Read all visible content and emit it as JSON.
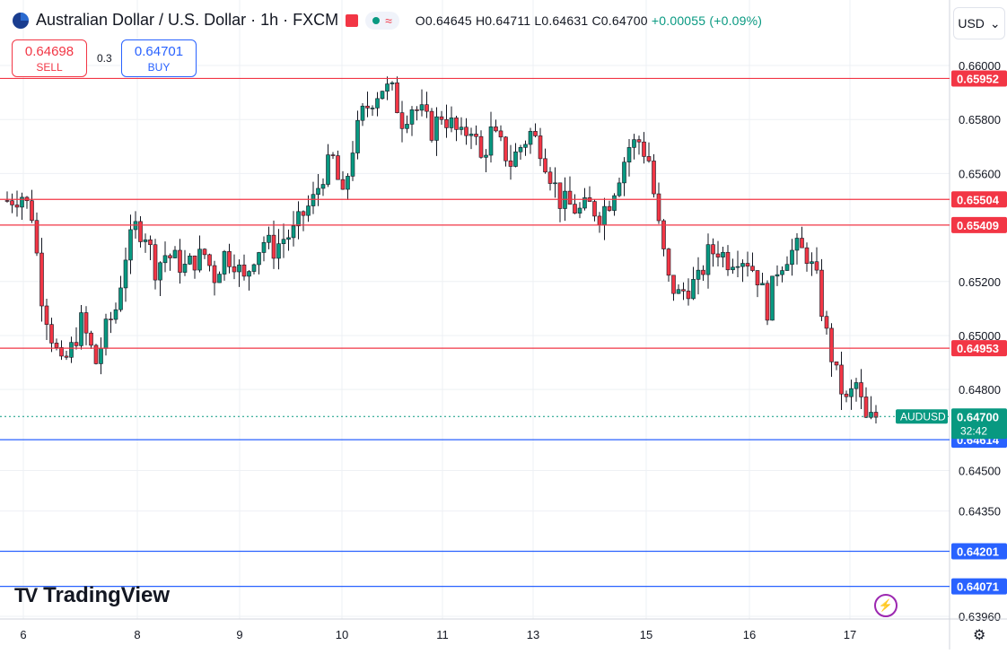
{
  "header": {
    "title": "Australian Dollar / U.S. Dollar · 1h · FXCM",
    "ohlc": {
      "o": "O0.64645",
      "h": "H0.64711",
      "l": "L0.64631",
      "c": "C0.64700",
      "chg": "+0.00055 (+0.09%)"
    }
  },
  "trade": {
    "sell_price": "0.64698",
    "sell_label": "SELL",
    "spread": "0.3",
    "buy_price": "0.64701",
    "buy_label": "BUY"
  },
  "currency": "USD",
  "brand": "TradingView",
  "colors": {
    "up": "#089981",
    "down": "#f23645",
    "resistance": "#f23645",
    "support": "#2962ff",
    "axis_label_red": "#f23645",
    "axis_label_blue": "#2962ff"
  },
  "chart_data": {
    "type": "candlestick",
    "symbol": "AUDUSD",
    "timeframe": "1h",
    "y_range": [
      0.6392,
      0.6612
    ],
    "y_ticks": [
      "0.66000",
      "0.65800",
      "0.65600",
      "0.65200",
      "0.65000",
      "0.64800",
      "0.64500",
      "0.64350",
      "0.63960"
    ],
    "x_ticks": [
      "6",
      "8",
      "9",
      "10",
      "11",
      "13",
      "15",
      "16",
      "17"
    ],
    "last_price": {
      "label": "AUDUSD",
      "value": "0.64700",
      "countdown": "32:42"
    },
    "horizontal_levels": [
      {
        "value": 0.65952,
        "label": "0.65952",
        "kind": "resistance"
      },
      {
        "value": 0.65504,
        "label": "0.65504",
        "kind": "resistance"
      },
      {
        "value": 0.65409,
        "label": "0.65409",
        "kind": "resistance"
      },
      {
        "value": 0.64953,
        "label": "0.64953",
        "kind": "resistance"
      },
      {
        "value": 0.64614,
        "label": "0.64614",
        "kind": "support"
      },
      {
        "value": 0.64201,
        "label": "0.64201",
        "kind": "support"
      },
      {
        "value": 0.64071,
        "label": "0.64071",
        "kind": "support"
      }
    ],
    "price_path": [
      [
        0,
        0.655
      ],
      [
        3,
        0.6552
      ],
      [
        5,
        0.6545
      ],
      [
        7,
        0.6515
      ],
      [
        9,
        0.65
      ],
      [
        11,
        0.6488
      ],
      [
        13,
        0.6495
      ],
      [
        15,
        0.6505
      ],
      [
        17,
        0.6495
      ],
      [
        18,
        0.649
      ],
      [
        20,
        0.6502
      ],
      [
        22,
        0.651
      ],
      [
        24,
        0.653
      ],
      [
        26,
        0.654
      ],
      [
        28,
        0.6538
      ],
      [
        30,
        0.6525
      ],
      [
        32,
        0.653
      ],
      [
        34,
        0.6528
      ],
      [
        36,
        0.6525
      ],
      [
        38,
        0.6528
      ],
      [
        40,
        0.653
      ],
      [
        42,
        0.6522
      ],
      [
        44,
        0.653
      ],
      [
        46,
        0.6528
      ],
      [
        48,
        0.652
      ],
      [
        50,
        0.653
      ],
      [
        52,
        0.6535
      ],
      [
        54,
        0.6532
      ],
      [
        56,
        0.6536
      ],
      [
        58,
        0.6538
      ],
      [
        60,
        0.6545
      ],
      [
        62,
        0.655
      ],
      [
        64,
        0.656
      ],
      [
        66,
        0.6565
      ],
      [
        68,
        0.655
      ],
      [
        70,
        0.657
      ],
      [
        72,
        0.6582
      ],
      [
        74,
        0.6588
      ],
      [
        76,
        0.6592
      ],
      [
        78,
        0.659
      ],
      [
        80,
        0.658
      ],
      [
        82,
        0.6585
      ],
      [
        84,
        0.6582
      ],
      [
        86,
        0.6576
      ],
      [
        88,
        0.6582
      ],
      [
        90,
        0.6578
      ],
      [
        92,
        0.6573
      ],
      [
        94,
        0.6578
      ],
      [
        96,
        0.6565
      ],
      [
        98,
        0.6575
      ],
      [
        100,
        0.657
      ],
      [
        102,
        0.6564
      ],
      [
        104,
        0.657
      ],
      [
        106,
        0.6575
      ],
      [
        108,
        0.657
      ],
      [
        110,
        0.656
      ],
      [
        112,
        0.655
      ],
      [
        114,
        0.6548
      ],
      [
        116,
        0.6546
      ],
      [
        118,
        0.6548
      ],
      [
        120,
        0.6545
      ],
      [
        122,
        0.655
      ],
      [
        124,
        0.656
      ],
      [
        126,
        0.657
      ],
      [
        128,
        0.6572
      ],
      [
        130,
        0.6565
      ],
      [
        132,
        0.654
      ],
      [
        134,
        0.652
      ],
      [
        136,
        0.6515
      ],
      [
        138,
        0.6518
      ],
      [
        140,
        0.652
      ],
      [
        142,
        0.653
      ],
      [
        144,
        0.6532
      ],
      [
        146,
        0.6528
      ],
      [
        148,
        0.653
      ],
      [
        150,
        0.6528
      ],
      [
        152,
        0.6522
      ],
      [
        154,
        0.651
      ],
      [
        156,
        0.6525
      ],
      [
        158,
        0.653
      ],
      [
        160,
        0.6532
      ],
      [
        162,
        0.653
      ],
      [
        164,
        0.652
      ],
      [
        166,
        0.65
      ],
      [
        168,
        0.6485
      ],
      [
        170,
        0.6475
      ],
      [
        172,
        0.6482
      ],
      [
        174,
        0.6468
      ],
      [
        176,
        0.647
      ]
    ]
  }
}
